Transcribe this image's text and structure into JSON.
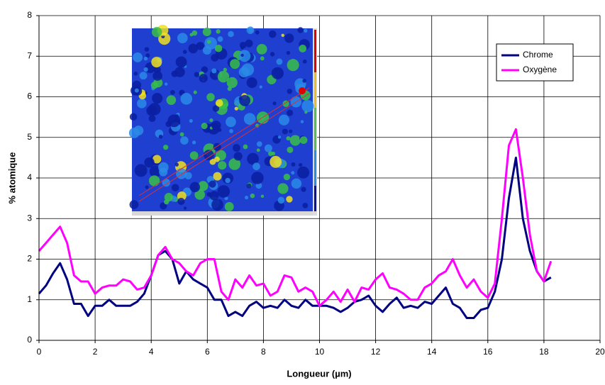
{
  "chart_data": {
    "type": "line",
    "xlabel": "Longueur (µm)",
    "ylabel": "% atomique",
    "x": [
      0,
      0.25,
      0.5,
      0.75,
      1,
      1.25,
      1.5,
      1.75,
      2,
      2.25,
      2.5,
      2.75,
      3,
      3.25,
      3.5,
      3.75,
      4,
      4.25,
      4.5,
      4.75,
      5,
      5.25,
      5.5,
      5.75,
      6,
      6.25,
      6.5,
      6.75,
      7,
      7.25,
      7.5,
      7.75,
      8,
      8.25,
      8.5,
      8.75,
      9,
      9.25,
      9.5,
      9.75,
      10,
      10.25,
      10.5,
      10.75,
      11,
      11.25,
      11.5,
      11.75,
      12,
      12.25,
      12.5,
      12.75,
      13,
      13.25,
      13.5,
      13.75,
      14,
      14.25,
      14.5,
      14.75,
      15,
      15.25,
      15.5,
      15.75,
      16,
      16.25,
      16.5,
      16.75,
      17,
      17.25,
      17.5,
      17.75,
      18,
      18.25
    ],
    "series": [
      {
        "name": "Chrome",
        "color": "#000080",
        "values": [
          1.15,
          1.35,
          1.65,
          1.9,
          1.5,
          0.9,
          0.9,
          0.6,
          0.85,
          0.85,
          1.0,
          0.85,
          0.85,
          0.85,
          0.95,
          1.15,
          1.6,
          2.1,
          2.2,
          2.0,
          1.4,
          1.7,
          1.5,
          1.4,
          1.3,
          1.0,
          1.0,
          0.6,
          0.7,
          0.6,
          0.85,
          0.95,
          0.8,
          0.85,
          0.8,
          1.0,
          0.85,
          0.8,
          1.0,
          0.85,
          0.85,
          0.85,
          0.8,
          0.7,
          0.8,
          0.95,
          1.0,
          1.1,
          0.85,
          0.7,
          0.9,
          1.05,
          0.8,
          0.85,
          0.8,
          0.95,
          0.9,
          1.1,
          1.3,
          0.9,
          0.8,
          0.55,
          0.55,
          0.75,
          0.8,
          1.2,
          2.0,
          3.5,
          4.5,
          3.0,
          2.2,
          1.7,
          1.45,
          1.55
        ]
      },
      {
        "name": "Oxygène",
        "color": "#ff00ff",
        "values": [
          2.2,
          2.4,
          2.6,
          2.8,
          2.4,
          1.6,
          1.45,
          1.45,
          1.15,
          1.3,
          1.35,
          1.35,
          1.5,
          1.45,
          1.25,
          1.3,
          1.6,
          2.1,
          2.3,
          2.0,
          1.9,
          1.7,
          1.6,
          1.9,
          2.0,
          2.0,
          1.2,
          1.0,
          1.5,
          1.3,
          1.6,
          1.35,
          1.4,
          1.1,
          1.2,
          1.6,
          1.55,
          1.2,
          1.3,
          1.2,
          0.85,
          1.0,
          1.2,
          0.95,
          1.25,
          0.95,
          1.3,
          1.25,
          1.5,
          1.65,
          1.3,
          1.25,
          1.15,
          1.0,
          1.0,
          1.3,
          1.4,
          1.6,
          1.7,
          2.0,
          1.6,
          1.3,
          1.5,
          1.2,
          1.05,
          1.4,
          3.0,
          4.8,
          5.2,
          4.0,
          2.6,
          1.7,
          1.45,
          1.95
        ]
      }
    ],
    "xlim": [
      0,
      20
    ],
    "xticks": [
      0,
      2,
      4,
      6,
      8,
      10,
      12,
      14,
      16,
      18,
      20
    ],
    "ylim": [
      0,
      8
    ],
    "yticks": [
      0,
      1,
      2,
      3,
      4,
      5,
      6,
      7,
      8
    ],
    "grid": true,
    "legend": "upper-right"
  }
}
